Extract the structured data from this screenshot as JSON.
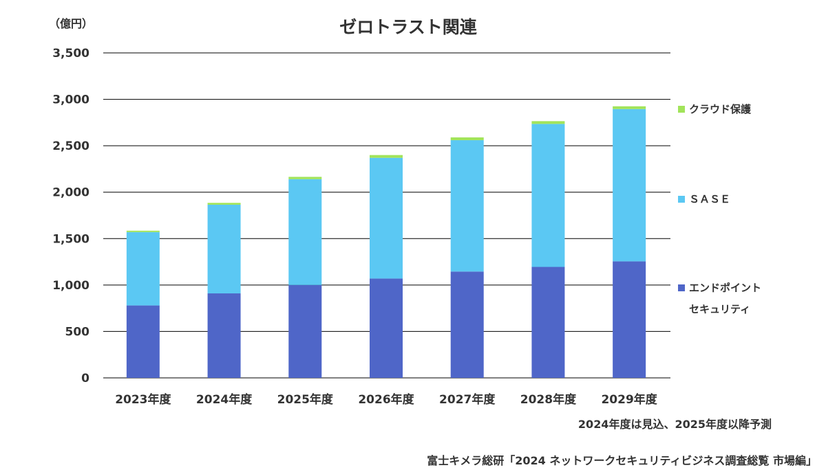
{
  "chart_data": {
    "type": "bar",
    "stacked": true,
    "title": "ゼロトラスト関連",
    "ylabel": "（億円）",
    "ylim": [
      0,
      3500
    ],
    "yticks": [
      0,
      500,
      1000,
      1500,
      2000,
      2500,
      3000,
      3500
    ],
    "ytick_labels": [
      "0",
      "500",
      "1,000",
      "1,500",
      "2,000",
      "2,500",
      "3,000",
      "3,500"
    ],
    "categories": [
      "2023年度",
      "2024年度",
      "2025年度",
      "2026年度",
      "2027年度",
      "2028年度",
      "2029年度"
    ],
    "series": [
      {
        "name_lines": [
          "エンドポイント",
          "セキュリティ"
        ],
        "color": "#4f66c8",
        "values": [
          780,
          910,
          1000,
          1070,
          1145,
          1195,
          1255
        ]
      },
      {
        "name_lines": [
          "ＳＡＳＥ"
        ],
        "color": "#5bc8f3",
        "values": [
          790,
          955,
          1140,
          1300,
          1415,
          1540,
          1640
        ]
      },
      {
        "name_lines": [
          "クラウド保護"
        ],
        "color": "#a2e45a",
        "values": [
          15,
          20,
          25,
          30,
          30,
          30,
          30
        ]
      }
    ],
    "grid": true,
    "legend_position": "right"
  },
  "notes": {
    "forecast": "2024年度は見込、2025年度以降予測",
    "source": "富士キメラ総研「2024 ネットワークセキュリティビジネス調査総覧 市場編」"
  }
}
